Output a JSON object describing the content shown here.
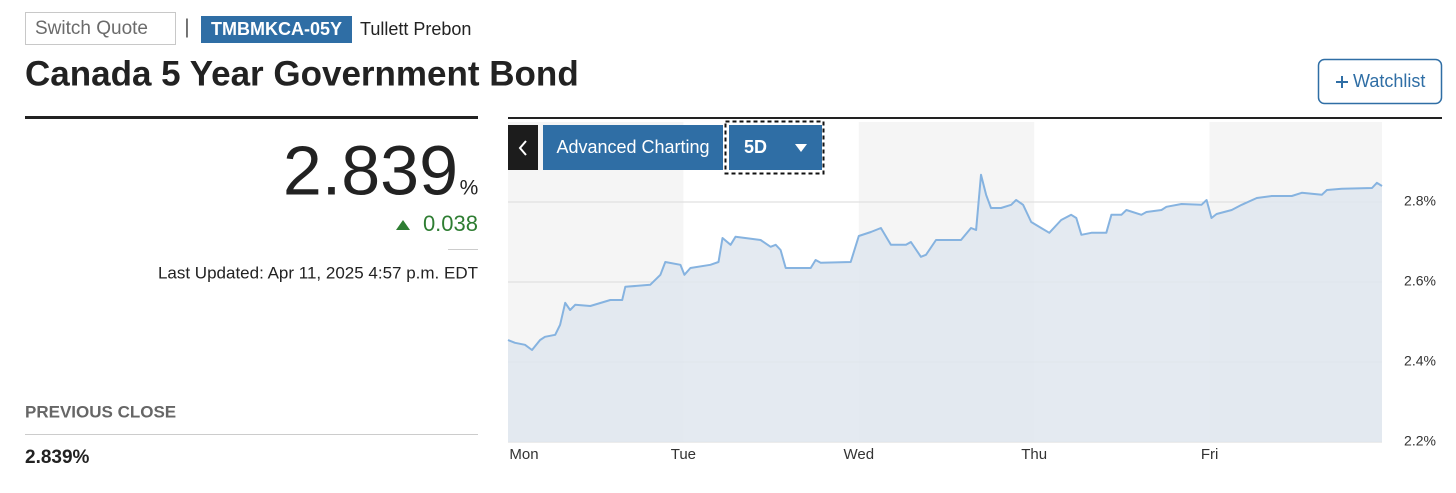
{
  "header": {
    "switch_quote": "Switch Quote",
    "separator": "|",
    "ticker": "TMBMKCA-05Y",
    "source": "Tullett Prebon",
    "title": "Canada 5 Year Government Bond",
    "watchlist": "Watchlist"
  },
  "quote": {
    "price": "2.839",
    "unit": "%",
    "change": "0.038",
    "last_updated": "Last Updated: Apr 11, 2025 4:57 p.m. EDT"
  },
  "previous_close": {
    "label": "PREVIOUS CLOSE",
    "value": "2.839%"
  },
  "controls": {
    "advanced_charting": "Advanced Charting",
    "range": "5D"
  },
  "chart_data": {
    "type": "area",
    "color": "#86b3e0",
    "fill_color": "#dfe6ef",
    "band_color": "#f5f5f5",
    "grid": true,
    "x": [
      0,
      0.04,
      0.097,
      0.137,
      0.183,
      0.211,
      0.269,
      0.297,
      0.326,
      0.354,
      0.383,
      0.469,
      0.583,
      0.651,
      0.669,
      0.811,
      0.869,
      0.897,
      0.983,
      1.006,
      1.04,
      1.154,
      1.2,
      1.223,
      1.269,
      1.297,
      1.44,
      1.497,
      1.526,
      1.554,
      1.583,
      1.726,
      1.754,
      1.783,
      1.954,
      2.0,
      2.069,
      2.126,
      2.183,
      2.269,
      2.297,
      2.354,
      2.383,
      2.44,
      2.583,
      2.64,
      2.669,
      2.697,
      2.726,
      2.754,
      2.811,
      2.869,
      2.897,
      2.937,
      2.983,
      3.04,
      3.086,
      3.154,
      3.211,
      3.24,
      3.269,
      3.326,
      3.411,
      3.44,
      3.497,
      3.526,
      3.611,
      3.64,
      3.726,
      3.754,
      3.84,
      3.954,
      3.983,
      4.011,
      4.04,
      4.126,
      4.183,
      4.269,
      4.354,
      4.469,
      4.526,
      4.64,
      4.669,
      4.754,
      4.926,
      4.954,
      4.983
    ],
    "values": [
      2.455,
      2.448,
      2.443,
      2.43,
      2.455,
      2.463,
      2.468,
      2.493,
      2.548,
      2.53,
      2.543,
      2.54,
      2.555,
      2.555,
      2.588,
      2.593,
      2.618,
      2.65,
      2.643,
      2.618,
      2.635,
      2.643,
      2.65,
      2.71,
      2.693,
      2.713,
      2.705,
      2.688,
      2.693,
      2.68,
      2.635,
      2.635,
      2.655,
      2.648,
      2.65,
      2.715,
      2.725,
      2.735,
      2.693,
      2.693,
      2.7,
      2.663,
      2.668,
      2.705,
      2.705,
      2.735,
      2.73,
      2.868,
      2.818,
      2.785,
      2.785,
      2.793,
      2.805,
      2.793,
      2.75,
      2.735,
      2.723,
      2.755,
      2.768,
      2.76,
      2.718,
      2.723,
      2.723,
      2.768,
      2.768,
      2.78,
      2.768,
      2.775,
      2.78,
      2.788,
      2.795,
      2.793,
      2.805,
      2.76,
      2.77,
      2.78,
      2.793,
      2.81,
      2.815,
      2.815,
      2.823,
      2.818,
      2.83,
      2.833,
      2.835,
      2.848,
      2.84
    ],
    "xlim": [
      0,
      4.983
    ],
    "xticks": [
      {
        "value": 0,
        "label": "Mon"
      },
      {
        "value": 1,
        "label": "Tue"
      },
      {
        "value": 2,
        "label": "Wed"
      },
      {
        "value": 3,
        "label": "Thu"
      },
      {
        "value": 4,
        "label": "Fri"
      }
    ],
    "ylim": [
      2.2,
      3.0
    ],
    "yticks": [
      {
        "value": 2.2,
        "label": "2.2%"
      },
      {
        "value": 2.4,
        "label": "2.4%"
      },
      {
        "value": 2.6,
        "label": "2.6%"
      },
      {
        "value": 2.8,
        "label": "2.8%"
      }
    ]
  }
}
